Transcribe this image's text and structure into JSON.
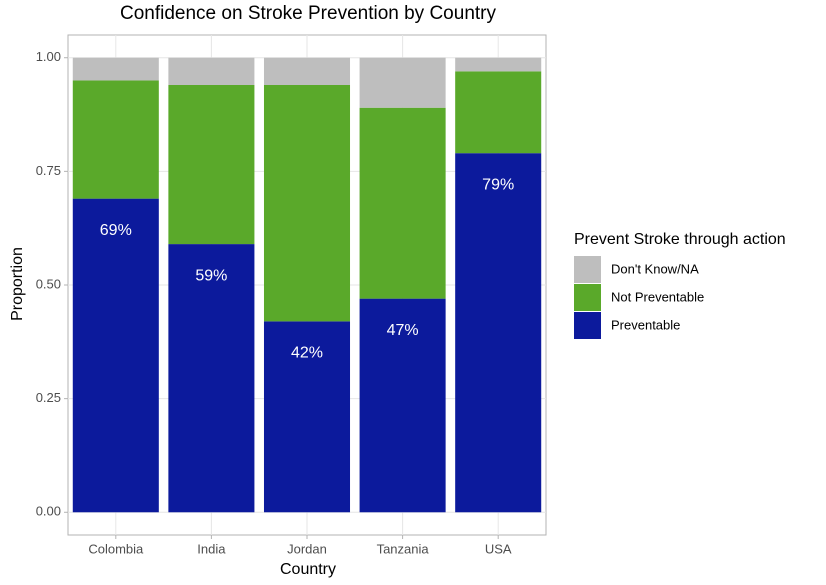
{
  "chart_data": {
    "type": "stacked_bar",
    "title": "Confidence on Stroke Prevention by Country",
    "x_label": "Country",
    "y_label": "Proportion",
    "legend_title": "Prevent Stroke through action",
    "categories": [
      "Colombia",
      "India",
      "Jordan",
      "Tanzania",
      "USA"
    ],
    "series": [
      {
        "name": "Preventable",
        "color": "#0c1a9c",
        "values": [
          0.69,
          0.59,
          0.42,
          0.47,
          0.79
        ],
        "value_labels": [
          "69%",
          "59%",
          "42%",
          "47%",
          "79%"
        ]
      },
      {
        "name": "Not Preventable",
        "color": "#5aa92a",
        "values": [
          0.26,
          0.35,
          0.52,
          0.42,
          0.18
        ]
      },
      {
        "name": "Don't Know/NA",
        "color": "#bebebe",
        "values": [
          0.05,
          0.06,
          0.06,
          0.11,
          0.03
        ]
      }
    ],
    "ylim": [
      -0.05,
      1.05
    ],
    "yticks": [
      {
        "value": 0,
        "label": "0.00"
      },
      {
        "value": 0.25,
        "label": "0.25"
      },
      {
        "value": 0.5,
        "label": "0.50"
      },
      {
        "value": 0.75,
        "label": "0.75"
      },
      {
        "value": 1,
        "label": "1.00"
      }
    ],
    "grid": true
  }
}
